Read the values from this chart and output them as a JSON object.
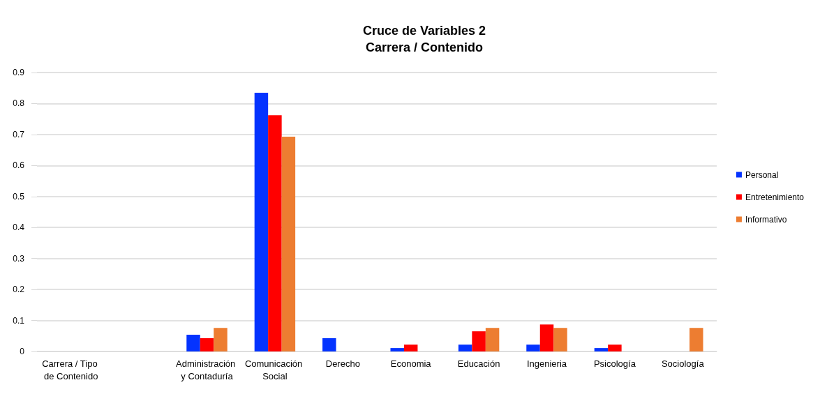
{
  "chart_data": {
    "type": "bar",
    "title": "Cruce de Variables 2",
    "subtitle": "Carrera / Contenido",
    "categories": [
      "Carrera / Tipo de Contenido",
      null,
      "Administración y Contaduría",
      "Comunicación Social",
      "Derecho",
      "Economia",
      "Educación",
      "Ingenieria",
      "Psicología",
      "Sociología"
    ],
    "series": [
      {
        "name": "Personal",
        "color": "#0433ff",
        "values": [
          null,
          null,
          0.054,
          0.835,
          0.043,
          0.011,
          0.022,
          0.022,
          0.011,
          null
        ]
      },
      {
        "name": "Entretenimiento",
        "color": "#ff0000",
        "values": [
          null,
          null,
          0.043,
          0.762,
          null,
          0.022,
          0.065,
          0.087,
          0.022,
          null
        ]
      },
      {
        "name": "Informativo",
        "color": "#ed7d31",
        "values": [
          null,
          null,
          0.076,
          0.693,
          null,
          null,
          0.076,
          0.076,
          null,
          0.076
        ]
      }
    ],
    "ylim": [
      0,
      0.9
    ],
    "yticks": [
      0,
      0.1,
      0.2,
      0.3,
      0.4,
      0.5,
      0.6,
      0.7,
      0.8,
      0.9
    ],
    "grid": "y",
    "legend": "right"
  }
}
